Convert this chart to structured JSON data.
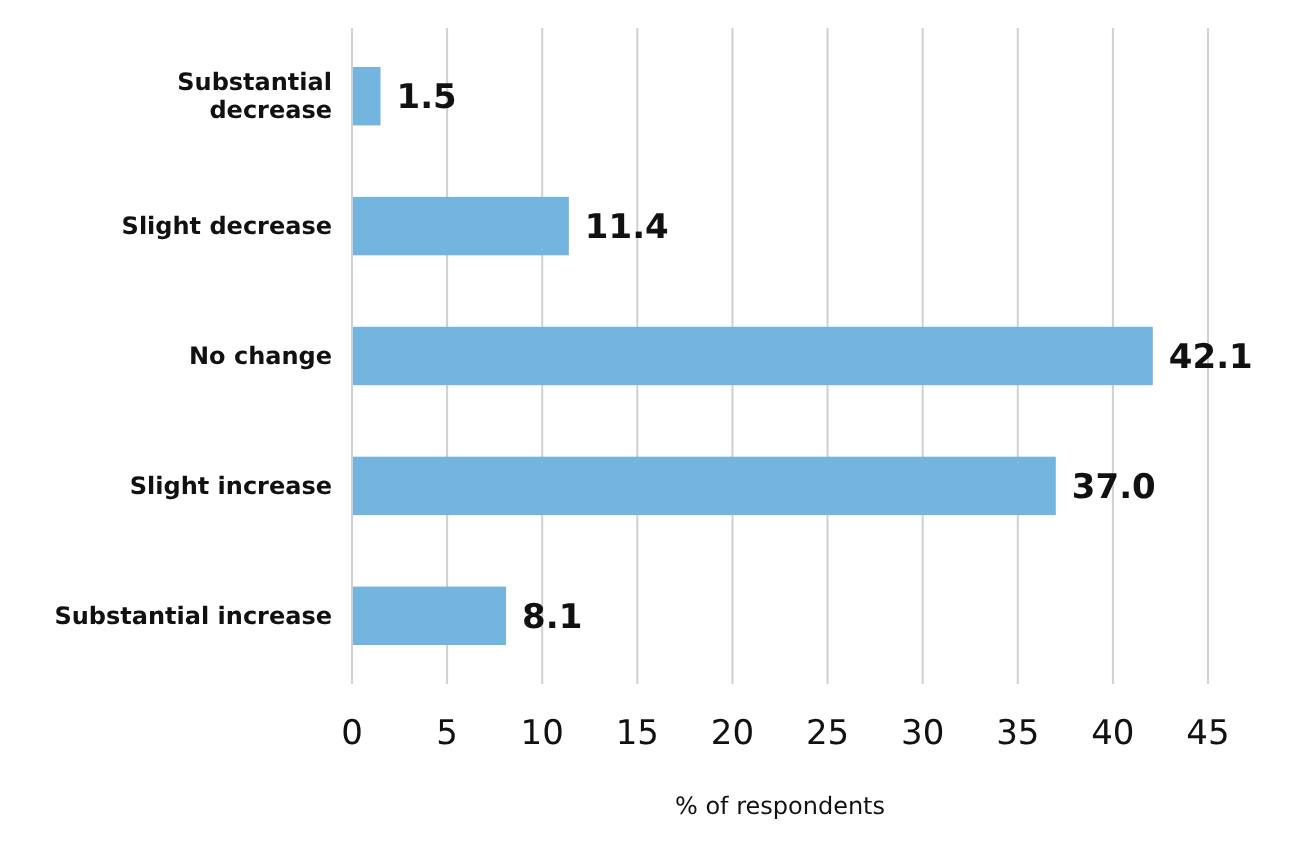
{
  "chart_data": {
    "type": "bar",
    "orientation": "horizontal",
    "xlabel": "% of respondents",
    "categories": [
      "Substantial\ndecrease",
      "Slight decrease",
      "No change",
      "Slight increase",
      "Substantial increase"
    ],
    "values": [
      1.5,
      11.4,
      42.1,
      37.0,
      8.1
    ],
    "value_labels": [
      "1.5",
      "11.4",
      "42.1",
      "37.0",
      "8.1"
    ],
    "color": "#74b5e0",
    "xlim": [
      0,
      45
    ],
    "xticks": [
      0,
      5,
      10,
      15,
      20,
      25,
      30,
      35,
      40,
      45
    ],
    "grid": "x"
  }
}
